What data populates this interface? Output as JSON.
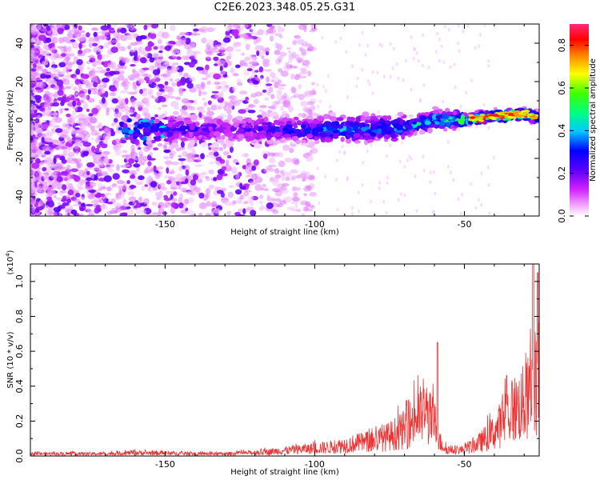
{
  "page": {
    "title": "C2E6.2023.348.05.25.G31"
  },
  "chart_data": [
    {
      "type": "heatmap",
      "title": "C2E6.2023.348.05.25.G31",
      "xlabel": "Height of straight line (km)",
      "ylabel": "Frequency (Hz)",
      "xlim": [
        -195,
        -25
      ],
      "ylim": [
        -50,
        50
      ],
      "xticks": [
        -150,
        -100,
        -50
      ],
      "yticks": [
        -40,
        -20,
        0,
        20,
        40
      ],
      "colorbar": {
        "label": "Normalized spectral amplitude",
        "range": [
          0.0,
          0.9
        ],
        "ticks": [
          0.0,
          0.2,
          0.4,
          0.6,
          0.8
        ],
        "colormap": [
          "#ffffff",
          "#e040ff",
          "#6a00ff",
          "#0000ff",
          "#00ffff",
          "#00ff00",
          "#ffff00",
          "#ff8000",
          "#ff0000",
          "#ff1a7a"
        ]
      },
      "ridge": {
        "description_points": [
          {
            "x": -160,
            "y": -5,
            "amp": 0.35
          },
          {
            "x": -130,
            "y": -5,
            "amp": 0.2
          },
          {
            "x": -110,
            "y": -5,
            "amp": 0.3
          },
          {
            "x": -90,
            "y": -5,
            "amp": 0.4
          },
          {
            "x": -70,
            "y": -4,
            "amp": 0.4
          },
          {
            "x": -60,
            "y": 0,
            "amp": 0.5
          },
          {
            "x": -50,
            "y": 0,
            "amp": 0.6
          },
          {
            "x": -40,
            "y": 2,
            "amp": 0.75
          },
          {
            "x": -30,
            "y": 3,
            "amp": 0.85
          },
          {
            "x": -25,
            "y": 1,
            "amp": 0.6
          }
        ]
      },
      "grid": false
    },
    {
      "type": "line",
      "xlabel": "Height of straight line (km)",
      "ylabel": "SNR (10 * v/v)",
      "y_multiplier_label": "(x10",
      "y_multiplier_exp": "4",
      "y_multiplier_close": ")",
      "xlim": [
        -195,
        -25
      ],
      "ylim": [
        0,
        1.1
      ],
      "xticks": [
        -150,
        -100,
        -50
      ],
      "yticks": [
        0.0,
        0.2,
        0.4,
        0.6,
        0.8,
        1.0
      ],
      "line_color": "#ee3333",
      "envelope": {
        "x": [
          -195,
          -170,
          -160,
          -140,
          -130,
          -120,
          -110,
          -100,
          -95,
          -90,
          -85,
          -80,
          -75,
          -70,
          -66,
          -63,
          -60,
          -58,
          -56,
          -53,
          -50,
          -45,
          -40,
          -37,
          -35,
          -32,
          -30,
          -28,
          -26,
          -25
        ],
        "y": [
          0.02,
          0.02,
          0.03,
          0.02,
          0.02,
          0.03,
          0.05,
          0.07,
          0.08,
          0.1,
          0.12,
          0.14,
          0.18,
          0.24,
          0.36,
          0.38,
          0.3,
          0.12,
          0.06,
          0.05,
          0.06,
          0.12,
          0.22,
          0.32,
          0.4,
          0.45,
          0.48,
          0.55,
          0.7,
          0.6
        ]
      },
      "peaks": [
        {
          "x": -59,
          "y": 0.65
        },
        {
          "x": -27,
          "y": 1.1
        },
        {
          "x": -25.5,
          "y": 1.05
        }
      ],
      "grid": false
    }
  ]
}
